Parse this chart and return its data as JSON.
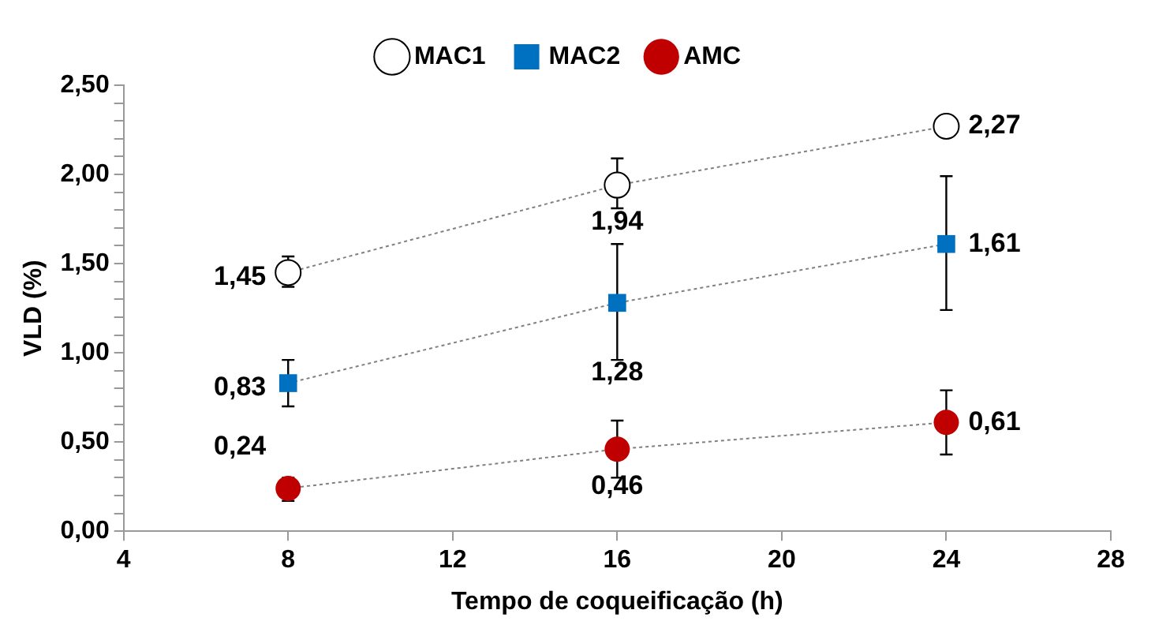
{
  "chart_data": {
    "type": "line",
    "xlabel": "Tempo de coqueificação (h)",
    "ylabel": "VLD (%)",
    "x": [
      8,
      16,
      24
    ],
    "series": [
      {
        "name": "MAC1",
        "color": "#000000",
        "marker": "circle",
        "values": [
          1.45,
          1.94,
          2.27
        ],
        "errors": [
          [
            1.37,
            1.54
          ],
          [
            1.81,
            2.09
          ],
          null
        ],
        "value_labels": [
          "1,45",
          "1,94",
          "2,27"
        ]
      },
      {
        "name": "MAC2",
        "color": "#0070c0",
        "marker": "square",
        "values": [
          0.83,
          1.28,
          1.61
        ],
        "errors": [
          [
            0.7,
            0.96
          ],
          [
            0.96,
            1.61
          ],
          [
            1.24,
            1.99
          ]
        ],
        "value_labels": [
          "0,83",
          "1,28",
          "1,61"
        ]
      },
      {
        "name": "AMC",
        "color": "#c00000",
        "marker": "circle",
        "values": [
          0.24,
          0.46,
          0.61
        ],
        "errors": [
          [
            0.17,
            0.3
          ],
          [
            0.3,
            0.62
          ],
          [
            0.43,
            0.79
          ]
        ],
        "value_labels": [
          "0,24",
          "0,46",
          "0,61"
        ]
      }
    ],
    "xlim": [
      4,
      28
    ],
    "xticks": [
      4,
      8,
      12,
      16,
      20,
      24,
      28
    ],
    "ylim": [
      0,
      2.5
    ],
    "yticks": [
      {
        "value": 0,
        "label": "0,00"
      },
      {
        "value": 0.1,
        "label": null
      },
      {
        "value": 0.2,
        "label": null
      },
      {
        "value": 0.3,
        "label": null
      },
      {
        "value": 0.4,
        "label": null
      },
      {
        "value": 0.5,
        "label": "0,50"
      },
      {
        "value": 0.6,
        "label": null
      },
      {
        "value": 0.7,
        "label": null
      },
      {
        "value": 0.8,
        "label": null
      },
      {
        "value": 0.9,
        "label": null
      },
      {
        "value": 1,
        "label": "1,00"
      },
      {
        "value": 1.1,
        "label": null
      },
      {
        "value": 1.2,
        "label": null
      },
      {
        "value": 1.3,
        "label": null
      },
      {
        "value": 1.4,
        "label": null
      },
      {
        "value": 1.5,
        "label": "1,50"
      },
      {
        "value": 1.6,
        "label": null
      },
      {
        "value": 1.7,
        "label": null
      },
      {
        "value": 1.8,
        "label": null
      },
      {
        "value": 1.9,
        "label": null
      },
      {
        "value": 2,
        "label": "2,00"
      },
      {
        "value": 2.1,
        "label": null
      },
      {
        "value": 2.2,
        "label": null
      },
      {
        "value": 2.3,
        "label": null
      },
      {
        "value": 2.4,
        "label": null
      },
      {
        "value": 2.5,
        "label": "2,50"
      }
    ],
    "grid": false,
    "legend": "top",
    "line_style": "dotted"
  }
}
